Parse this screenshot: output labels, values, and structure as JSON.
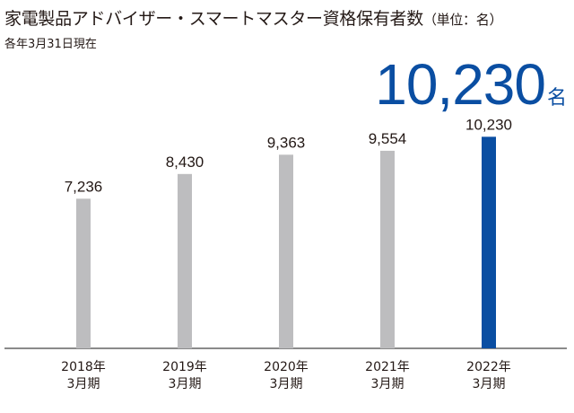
{
  "header": {
    "title": "家電製品アドバイザー・スマートマスター資格保有者数",
    "unit": "（単位：名）",
    "note": "各年3月31日現在"
  },
  "highlight": {
    "value": "10,230",
    "suffix": "名"
  },
  "colors": {
    "bar_default": "#bdbdbf",
    "bar_highlight": "#0a4ea2",
    "axis": "#444444"
  },
  "chart_data": {
    "type": "bar",
    "categories": [
      "2018年\n3月期",
      "2019年\n3月期",
      "2020年\n3月期",
      "2021年\n3月期",
      "2022年\n3月期"
    ],
    "values": [
      7236,
      8430,
      9363,
      9554,
      10230
    ],
    "value_labels": [
      "7,236",
      "8,430",
      "9,363",
      "9,554",
      "10,230"
    ],
    "highlight_index": 4,
    "ylim": [
      0,
      11200
    ],
    "grid": false
  }
}
